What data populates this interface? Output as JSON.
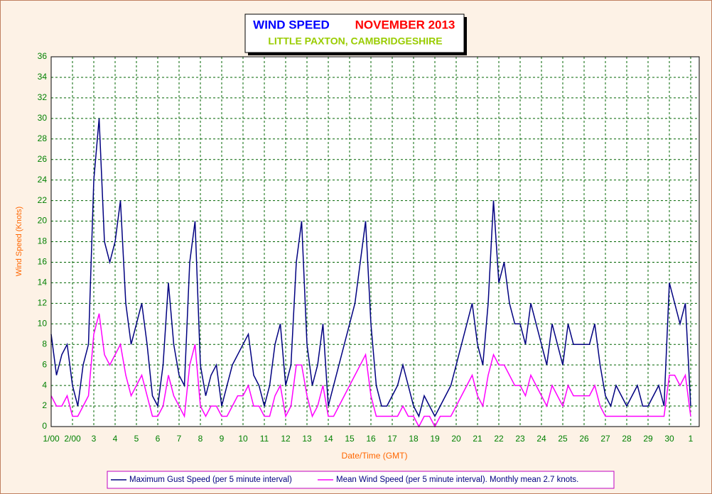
{
  "chart_data": {
    "type": "line",
    "title": "WIND SPEED",
    "title_date": "NOVEMBER 2013",
    "subtitle": "LITTLE PAXTON, CAMBRIDGESHIRE",
    "ylabel": "Wind Speed (Knots)",
    "xlabel": "Date/Time (GMT)",
    "x": [
      0,
      0.25,
      0.5,
      0.75,
      1,
      1.25,
      1.5,
      1.75,
      2,
      2.25,
      2.5,
      2.75,
      3,
      3.25,
      3.5,
      3.75,
      4,
      4.25,
      4.5,
      4.75,
      5,
      5.25,
      5.5,
      5.75,
      6,
      6.25,
      6.5,
      6.75,
      7,
      7.25,
      7.5,
      7.75,
      8,
      8.25,
      8.5,
      8.75,
      9,
      9.25,
      9.5,
      9.75,
      10,
      10.25,
      10.5,
      10.75,
      11,
      11.25,
      11.5,
      11.75,
      12,
      12.25,
      12.5,
      12.75,
      13,
      13.25,
      13.5,
      13.75,
      14,
      14.25,
      14.5,
      14.75,
      15,
      15.25,
      15.5,
      15.75,
      16,
      16.25,
      16.5,
      16.75,
      17,
      17.25,
      17.5,
      17.75,
      18,
      18.25,
      18.5,
      18.75,
      19,
      19.25,
      19.5,
      19.75,
      20,
      20.25,
      20.5,
      20.75,
      21,
      21.25,
      21.5,
      21.75,
      22,
      22.25,
      22.5,
      22.75,
      23,
      23.25,
      23.5,
      23.75,
      24,
      24.25,
      24.5,
      24.75,
      25,
      25.25,
      25.5,
      25.75,
      26,
      26.25,
      26.5,
      26.75,
      27,
      27.25,
      27.5,
      27.75,
      28,
      28.25,
      28.5,
      28.75,
      29,
      29.25,
      29.5,
      29.75,
      30
    ],
    "series": [
      {
        "name": "Maximum Gust Speed (per 5 minute interval)",
        "color": "#000080",
        "values": [
          9,
          5,
          7,
          8,
          4,
          2,
          6,
          8,
          24,
          30,
          18,
          16,
          18,
          22,
          12,
          8,
          10,
          12,
          8,
          3,
          2,
          6,
          14,
          8,
          5,
          4,
          16,
          20,
          6,
          3,
          5,
          6,
          2,
          4,
          6,
          7,
          8,
          9,
          5,
          4,
          2,
          4,
          8,
          10,
          4,
          6,
          16,
          20,
          8,
          4,
          6,
          10,
          2,
          4,
          6,
          8,
          10,
          12,
          16,
          20,
          10,
          4,
          2,
          2,
          3,
          4,
          6,
          4,
          2,
          1,
          3,
          2,
          1,
          2,
          3,
          4,
          6,
          8,
          10,
          12,
          8,
          6,
          12,
          22,
          14,
          16,
          12,
          10,
          10,
          8,
          12,
          10,
          8,
          6,
          10,
          8,
          6,
          10,
          8,
          8,
          8,
          8,
          10,
          6,
          3,
          2,
          4,
          3,
          2,
          3,
          4,
          2,
          2,
          3,
          4,
          2,
          14,
          12,
          10,
          12,
          2
        ]
      },
      {
        "name": "Mean Wind Speed (per 5 minute interval). Monthly mean 2.7 knots.",
        "color": "#ff00ff",
        "values": [
          3,
          2,
          2,
          3,
          1,
          1,
          2,
          3,
          9,
          11,
          7,
          6,
          7,
          8,
          5,
          3,
          4,
          5,
          3,
          1,
          1,
          2,
          5,
          3,
          2,
          1,
          6,
          8,
          2,
          1,
          2,
          2,
          1,
          1,
          2,
          3,
          3,
          4,
          2,
          2,
          1,
          1,
          3,
          4,
          1,
          2,
          6,
          6,
          3,
          1,
          2,
          4,
          1,
          1,
          2,
          3,
          4,
          5,
          6,
          7,
          3,
          1,
          1,
          1,
          1,
          1,
          2,
          1,
          1,
          0,
          1,
          1,
          0,
          1,
          1,
          1,
          2,
          3,
          4,
          5,
          3,
          2,
          5,
          7,
          6,
          6,
          5,
          4,
          4,
          3,
          5,
          4,
          3,
          2,
          4,
          3,
          2,
          4,
          3,
          3,
          3,
          3,
          4,
          2,
          1,
          1,
          1,
          1,
          1,
          1,
          1,
          1,
          1,
          1,
          1,
          1,
          5,
          5,
          4,
          5,
          1
        ]
      }
    ],
    "xlim": [
      0,
      30.4
    ],
    "ylim": [
      0,
      36
    ],
    "yticks": [
      0,
      2,
      4,
      6,
      8,
      10,
      12,
      14,
      16,
      18,
      20,
      22,
      24,
      26,
      28,
      30,
      32,
      34,
      36
    ],
    "xticks": [
      {
        "value": 0,
        "label": "1/00"
      },
      {
        "value": 1,
        "label": "2/00"
      },
      {
        "value": 2,
        "label": "3"
      },
      {
        "value": 3,
        "label": "4"
      },
      {
        "value": 4,
        "label": "5"
      },
      {
        "value": 5,
        "label": "6"
      },
      {
        "value": 6,
        "label": "7"
      },
      {
        "value": 7,
        "label": "8"
      },
      {
        "value": 8,
        "label": "9"
      },
      {
        "value": 9,
        "label": "10"
      },
      {
        "value": 10,
        "label": "11"
      },
      {
        "value": 11,
        "label": "12"
      },
      {
        "value": 12,
        "label": "13"
      },
      {
        "value": 13,
        "label": "14"
      },
      {
        "value": 14,
        "label": "15"
      },
      {
        "value": 15,
        "label": "16"
      },
      {
        "value": 16,
        "label": "17"
      },
      {
        "value": 17,
        "label": "18"
      },
      {
        "value": 18,
        "label": "19"
      },
      {
        "value": 19,
        "label": "20"
      },
      {
        "value": 20,
        "label": "21"
      },
      {
        "value": 21,
        "label": "22"
      },
      {
        "value": 22,
        "label": "23"
      },
      {
        "value": 23,
        "label": "24"
      },
      {
        "value": 24,
        "label": "25"
      },
      {
        "value": 25,
        "label": "26"
      },
      {
        "value": 26,
        "label": "27"
      },
      {
        "value": 27,
        "label": "28"
      },
      {
        "value": 28,
        "label": "29"
      },
      {
        "value": 29,
        "label": "30"
      },
      {
        "value": 30,
        "label": "1"
      }
    ],
    "grid": true
  }
}
